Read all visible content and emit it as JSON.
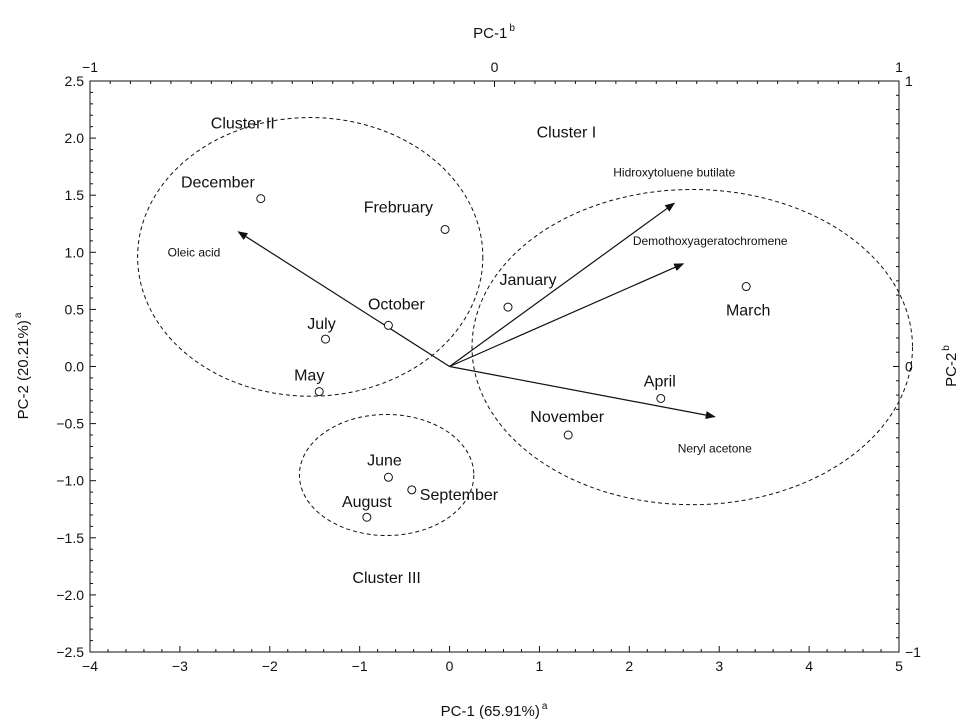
{
  "chart_data": {
    "type": "scatter",
    "xlabel": "PC-1 (65.91%)",
    "xlabel_sup": "a",
    "ylabel": "PC-2 (20.21%)",
    "ylabel_sup": "a",
    "x2label": "PC-1",
    "x2label_sup": "b",
    "y2label": "PC-2",
    "y2label_sup": "b",
    "xlim": [
      -4,
      5
    ],
    "ylim": [
      -2.5,
      2.5
    ],
    "x2lim": [
      -1,
      1
    ],
    "y2lim": [
      -1,
      1
    ],
    "xticks": [
      -4,
      -3,
      -2,
      -1,
      0,
      1,
      2,
      3,
      4,
      5
    ],
    "yticks": [
      -2.5,
      -2.0,
      -1.5,
      -1.0,
      -0.5,
      0.0,
      0.5,
      1.0,
      1.5,
      2.0,
      2.5
    ],
    "xtick_labels": [
      "−4",
      "−3",
      "−2",
      "−1",
      "0",
      "1",
      "2",
      "3",
      "4",
      "5"
    ],
    "ytick_labels": [
      "−2.5",
      "−2.0",
      "−1.5",
      "−1.0",
      "−0.5",
      "0.0",
      "0.5",
      "1.0",
      "1.5",
      "2.0",
      "2.5"
    ],
    "x2ticks": [
      -1,
      0,
      1
    ],
    "x2tick_labels": [
      "−1",
      "0",
      "1"
    ],
    "y2ticks": [
      -1,
      0,
      1
    ],
    "y2tick_labels": [
      "−1",
      "0",
      "1"
    ],
    "grid": false,
    "points": [
      {
        "label": "December",
        "x": -2.1,
        "y": 1.47,
        "anchor": "end",
        "dx": -6,
        "dy": -11
      },
      {
        "label": "Frebruary",
        "x": -0.05,
        "y": 1.2,
        "anchor": "end",
        "dx": -12,
        "dy": -17
      },
      {
        "label": "January",
        "x": 0.65,
        "y": 0.52,
        "anchor": "middle",
        "dx": 20,
        "dy": -22
      },
      {
        "label": "March",
        "x": 3.3,
        "y": 0.7,
        "anchor": "middle",
        "dx": 2,
        "dy": 29
      },
      {
        "label": "October",
        "x": -0.68,
        "y": 0.36,
        "anchor": "middle",
        "dx": 8,
        "dy": -16
      },
      {
        "label": "July",
        "x": -1.38,
        "y": 0.24,
        "anchor": "middle",
        "dx": -4,
        "dy": -10
      },
      {
        "label": "May",
        "x": -1.45,
        "y": -0.22,
        "anchor": "middle",
        "dx": -10,
        "dy": -11
      },
      {
        "label": "April",
        "x": 2.35,
        "y": -0.28,
        "anchor": "middle",
        "dx": -1,
        "dy": -12
      },
      {
        "label": "November",
        "x": 1.32,
        "y": -0.6,
        "anchor": "middle",
        "dx": -1,
        "dy": -13
      },
      {
        "label": "June",
        "x": -0.68,
        "y": -0.97,
        "anchor": "middle",
        "dx": -4,
        "dy": -12
      },
      {
        "label": "September",
        "x": -0.42,
        "y": -1.08,
        "anchor": "start",
        "dx": 8,
        "dy": 10
      },
      {
        "label": "August",
        "x": -0.92,
        "y": -1.32,
        "anchor": "middle",
        "dx": 0,
        "dy": -10
      }
    ],
    "vectors": [
      {
        "label": "Oleic acid",
        "x": -2.35,
        "y": 1.18,
        "anchor": "end",
        "lx": -2.55,
        "ly": 1.0
      },
      {
        "label": "Hidroxytoluene butilate",
        "x": 2.5,
        "y": 1.43,
        "anchor": "middle",
        "lx": 2.5,
        "ly": 1.7
      },
      {
        "label": "Demothoxyageratochromene",
        "x": 2.6,
        "y": 0.9,
        "anchor": "middle",
        "lx": 2.9,
        "ly": 1.1
      },
      {
        "label": "Neryl acetone",
        "x": 2.95,
        "y": -0.44,
        "anchor": "middle",
        "lx": 2.95,
        "ly": -0.72
      }
    ],
    "clusters": [
      {
        "label": "Cluster I",
        "cx": 2.7,
        "cy": 0.17,
        "rx": 2.45,
        "ry": 1.38,
        "lx": 1.3,
        "ly": 2.05
      },
      {
        "label": "Cluster II",
        "cx": -1.55,
        "cy": 0.96,
        "rx": 1.92,
        "ry": 1.22,
        "lx": -2.3,
        "ly": 2.13
      },
      {
        "label": "Cluster III",
        "cx": -0.7,
        "cy": -0.95,
        "rx": 0.97,
        "ry": 0.53,
        "lx": -0.7,
        "ly": -1.85
      }
    ]
  }
}
